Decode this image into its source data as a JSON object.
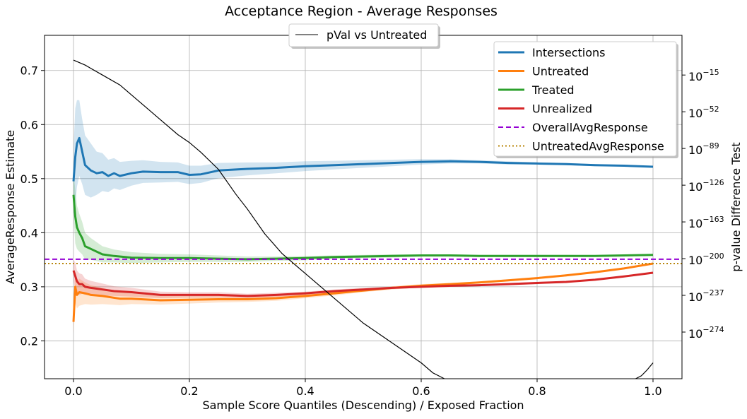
{
  "chart_data": {
    "type": "line",
    "title": "Acceptance Region - Average Responses",
    "xlabel": "Sample Score Quantiles (Descending) / Exposed Fraction",
    "ylabel": "AverageResponse Estimate",
    "y2label": "p-value Difference Test",
    "xlim": [
      -0.05,
      1.05
    ],
    "ylim": [
      0.13,
      0.765
    ],
    "y2_scale": "log",
    "y2lim_exponent": [
      -321,
      25
    ],
    "grid": true,
    "legend_placement": "top-right",
    "secondary_legend_placement": "top-center",
    "x_ticks": [
      "0.0",
      "0.2",
      "0.4",
      "0.6",
      "0.8",
      "1.0"
    ],
    "x_tick_values": [
      0.0,
      0.2,
      0.4,
      0.6,
      0.8,
      1.0
    ],
    "y_ticks": [
      "0.2",
      "0.3",
      "0.4",
      "0.5",
      "0.6",
      "0.7"
    ],
    "y_tick_values": [
      0.2,
      0.3,
      0.4,
      0.5,
      0.6,
      0.7
    ],
    "y2_ticks": [
      {
        "base": "10",
        "exp": "−15",
        "value_exp": -15
      },
      {
        "base": "10",
        "exp": "−52",
        "value_exp": -52
      },
      {
        "base": "10",
        "exp": "−89",
        "value_exp": -89
      },
      {
        "base": "10",
        "exp": "−126",
        "value_exp": -126
      },
      {
        "base": "10",
        "exp": "−163",
        "value_exp": -163
      },
      {
        "base": "10",
        "exp": "−200",
        "value_exp": -200
      },
      {
        "base": "10",
        "exp": "−237",
        "value_exp": -237
      },
      {
        "base": "10",
        "exp": "−274",
        "value_exp": -274
      }
    ],
    "series": [
      {
        "name": "Intersections",
        "color": "#1f77b4",
        "style": "solid",
        "x": [
          0.0,
          0.003,
          0.006,
          0.01,
          0.015,
          0.02,
          0.03,
          0.04,
          0.05,
          0.06,
          0.07,
          0.08,
          0.1,
          0.12,
          0.15,
          0.18,
          0.2,
          0.22,
          0.25,
          0.3,
          0.35,
          0.4,
          0.45,
          0.5,
          0.55,
          0.6,
          0.65,
          0.7,
          0.75,
          0.8,
          0.85,
          0.9,
          0.95,
          1.0
        ],
        "y": [
          0.495,
          0.54,
          0.565,
          0.575,
          0.55,
          0.525,
          0.515,
          0.51,
          0.512,
          0.505,
          0.51,
          0.505,
          0.51,
          0.513,
          0.512,
          0.512,
          0.507,
          0.508,
          0.515,
          0.518,
          0.52,
          0.523,
          0.525,
          0.527,
          0.529,
          0.531,
          0.532,
          0.531,
          0.529,
          0.528,
          0.527,
          0.525,
          0.524,
          0.522
        ],
        "band_halfwidth": [
          0.06,
          0.09,
          0.08,
          0.07,
          0.06,
          0.055,
          0.05,
          0.04,
          0.035,
          0.03,
          0.028,
          0.026,
          0.023,
          0.021,
          0.019,
          0.018,
          0.017,
          0.016,
          0.014,
          0.012,
          0.01,
          0.009,
          0.008,
          0.007,
          0.006,
          0.005,
          0.004,
          0.003,
          0.003,
          0.002,
          0.002,
          0.002,
          0.001,
          0.001
        ]
      },
      {
        "name": "Untreated",
        "color": "#ff7f0e",
        "style": "solid",
        "x": [
          0.0,
          0.003,
          0.006,
          0.01,
          0.02,
          0.03,
          0.05,
          0.08,
          0.1,
          0.15,
          0.2,
          0.25,
          0.3,
          0.35,
          0.4,
          0.45,
          0.5,
          0.55,
          0.6,
          0.65,
          0.7,
          0.75,
          0.8,
          0.85,
          0.9,
          0.95,
          1.0
        ],
        "y": [
          0.235,
          0.3,
          0.285,
          0.29,
          0.288,
          0.285,
          0.283,
          0.278,
          0.278,
          0.275,
          0.276,
          0.277,
          0.277,
          0.279,
          0.283,
          0.288,
          0.293,
          0.298,
          0.302,
          0.305,
          0.308,
          0.312,
          0.316,
          0.321,
          0.327,
          0.334,
          0.343
        ],
        "band_halfwidth": [
          0.02,
          0.03,
          0.025,
          0.025,
          0.02,
          0.018,
          0.015,
          0.012,
          0.01,
          0.008,
          0.007,
          0.006,
          0.005,
          0.005,
          0.004,
          0.004,
          0.003,
          0.003,
          0.003,
          0.002,
          0.002,
          0.002,
          0.002,
          0.002,
          0.001,
          0.001,
          0.001
        ]
      },
      {
        "name": "Treated",
        "color": "#2ca02c",
        "style": "solid",
        "x": [
          0.0,
          0.003,
          0.006,
          0.01,
          0.015,
          0.02,
          0.03,
          0.05,
          0.07,
          0.1,
          0.15,
          0.2,
          0.25,
          0.3,
          0.35,
          0.4,
          0.45,
          0.5,
          0.55,
          0.6,
          0.65,
          0.7,
          0.75,
          0.8,
          0.85,
          0.9,
          0.95,
          1.0
        ],
        "y": [
          0.47,
          0.43,
          0.41,
          0.4,
          0.39,
          0.375,
          0.37,
          0.36,
          0.357,
          0.354,
          0.353,
          0.353,
          0.352,
          0.351,
          0.352,
          0.353,
          0.355,
          0.356,
          0.357,
          0.358,
          0.358,
          0.357,
          0.357,
          0.357,
          0.357,
          0.357,
          0.358,
          0.359
        ],
        "band_halfwidth": [
          0.04,
          0.05,
          0.04,
          0.035,
          0.03,
          0.025,
          0.02,
          0.015,
          0.012,
          0.01,
          0.008,
          0.007,
          0.006,
          0.005,
          0.004,
          0.004,
          0.003,
          0.003,
          0.003,
          0.002,
          0.002,
          0.002,
          0.002,
          0.002,
          0.002,
          0.001,
          0.001,
          0.001
        ]
      },
      {
        "name": "Unrealized",
        "color": "#d62728",
        "style": "solid",
        "x": [
          0.0,
          0.003,
          0.006,
          0.01,
          0.015,
          0.02,
          0.03,
          0.05,
          0.07,
          0.1,
          0.15,
          0.2,
          0.25,
          0.3,
          0.35,
          0.4,
          0.45,
          0.5,
          0.55,
          0.6,
          0.65,
          0.7,
          0.75,
          0.8,
          0.85,
          0.9,
          0.95,
          1.0
        ],
        "y": [
          0.33,
          0.32,
          0.31,
          0.305,
          0.305,
          0.3,
          0.298,
          0.295,
          0.292,
          0.29,
          0.285,
          0.285,
          0.285,
          0.283,
          0.285,
          0.288,
          0.292,
          0.295,
          0.298,
          0.3,
          0.302,
          0.303,
          0.305,
          0.307,
          0.309,
          0.313,
          0.319,
          0.326
        ],
        "band_halfwidth": [
          0.02,
          0.025,
          0.02,
          0.02,
          0.018,
          0.015,
          0.013,
          0.011,
          0.009,
          0.008,
          0.006,
          0.005,
          0.005,
          0.004,
          0.004,
          0.003,
          0.003,
          0.003,
          0.002,
          0.002,
          0.002,
          0.002,
          0.002,
          0.002,
          0.001,
          0.001,
          0.001,
          0.001
        ]
      },
      {
        "name": "OverallAvgResponse",
        "color": "#9400d3",
        "style": "dashed",
        "y_const": 0.351
      },
      {
        "name": "UntreatedAvgResponse",
        "color": "#b8860b",
        "style": "dotted",
        "y_const": 0.343
      },
      {
        "name": "pVal vs Untreated",
        "color": "#000000",
        "style": "solid",
        "axis": "secondary",
        "x": [
          0.0,
          0.02,
          0.05,
          0.08,
          0.1,
          0.12,
          0.15,
          0.18,
          0.2,
          0.22,
          0.25,
          0.28,
          0.3,
          0.33,
          0.36,
          0.4,
          0.45,
          0.5,
          0.55,
          0.58,
          0.6,
          0.62,
          0.64
        ],
        "y_exp": [
          0,
          -5,
          -15,
          -25,
          -35,
          -45,
          -60,
          -75,
          -83,
          -93,
          -110,
          -135,
          -150,
          -175,
          -195,
          -215,
          -240,
          -265,
          -285,
          -297,
          -305,
          -315,
          -325
        ],
        "x_tail": [
          0.97,
          0.98,
          0.99,
          1.0
        ],
        "y_exp_tail": [
          -325,
          -318,
          -312,
          -305
        ]
      }
    ]
  }
}
